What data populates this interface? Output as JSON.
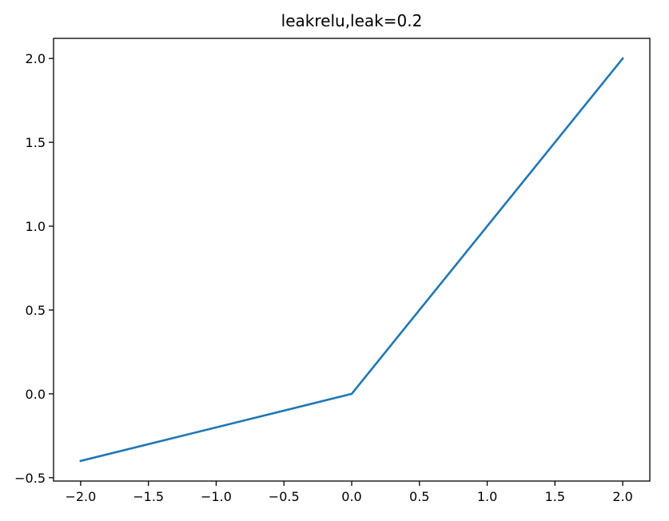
{
  "chart_data": {
    "type": "line",
    "title": "leakrelu,leak=0.2",
    "xlabel": "",
    "ylabel": "",
    "xlim": [
      -2.2,
      2.2
    ],
    "ylim": [
      -0.52,
      2.12
    ],
    "xticks": [
      -2.0,
      -1.5,
      -1.0,
      -0.5,
      0.0,
      0.5,
      1.0,
      1.5,
      2.0
    ],
    "xtick_labels": [
      "−2.0",
      "−1.5",
      "−1.0",
      "−0.5",
      "0.0",
      "0.5",
      "1.0",
      "1.5",
      "2.0"
    ],
    "yticks": [
      -0.5,
      0.0,
      0.5,
      1.0,
      1.5,
      2.0
    ],
    "ytick_labels": [
      "−0.5",
      "0.0",
      "0.5",
      "1.0",
      "1.5",
      "2.0"
    ],
    "grid": false,
    "series": [
      {
        "color": "#1f77b4",
        "x": [
          -2.0,
          0.0,
          2.0
        ],
        "y": [
          -0.4,
          0.0,
          2.0
        ]
      }
    ]
  }
}
